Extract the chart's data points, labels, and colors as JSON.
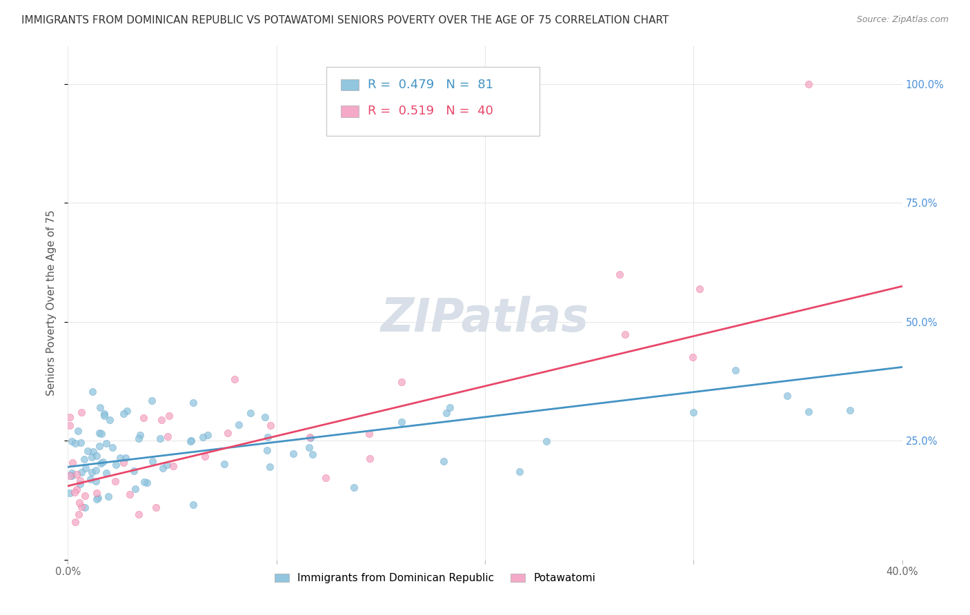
{
  "title": "IMMIGRANTS FROM DOMINICAN REPUBLIC VS POTAWATOMI SENIORS POVERTY OVER THE AGE OF 75 CORRELATION CHART",
  "source": "Source: ZipAtlas.com",
  "ylabel": "Seniors Poverty Over the Age of 75",
  "legend_label1": "Immigrants from Dominican Republic",
  "legend_label2": "Potawatomi",
  "R1": 0.479,
  "N1": 81,
  "R2": 0.519,
  "N2": 40,
  "color1": "#92c5de",
  "color2": "#f4a9c8",
  "trendline_color1": "#4393c3",
  "trendline_color2": "#e8476a",
  "watermark": "ZIPatlas",
  "xlim": [
    0.0,
    0.4
  ],
  "ylim": [
    0.0,
    1.08
  ],
  "xtick_positions": [
    0.0,
    0.1,
    0.2,
    0.3,
    0.4
  ],
  "xtick_labels": [
    "0.0%",
    "",
    "",
    "",
    "40.0%"
  ],
  "ytick_positions": [
    0.0,
    0.25,
    0.5,
    0.75,
    1.0
  ],
  "ytick_labels_right": [
    "",
    "25.0%",
    "50.0%",
    "75.0%",
    "100.0%"
  ],
  "background_color": "#ffffff",
  "plot_bg_color": "#ffffff",
  "grid_color": "#e8e8e8",
  "title_fontsize": 11,
  "axis_label_fontsize": 11,
  "tick_fontsize": 10.5,
  "legend_fontsize": 13,
  "watermark_fontsize": 48,
  "watermark_color": "#d8dfe8",
  "trendline1_x0": 0.0,
  "trendline1_y0": 0.195,
  "trendline1_x1": 0.4,
  "trendline1_y1": 0.405,
  "trendline2_x0": 0.0,
  "trendline2_y0": 0.155,
  "trendline2_x1": 0.4,
  "trendline2_y1": 0.575
}
